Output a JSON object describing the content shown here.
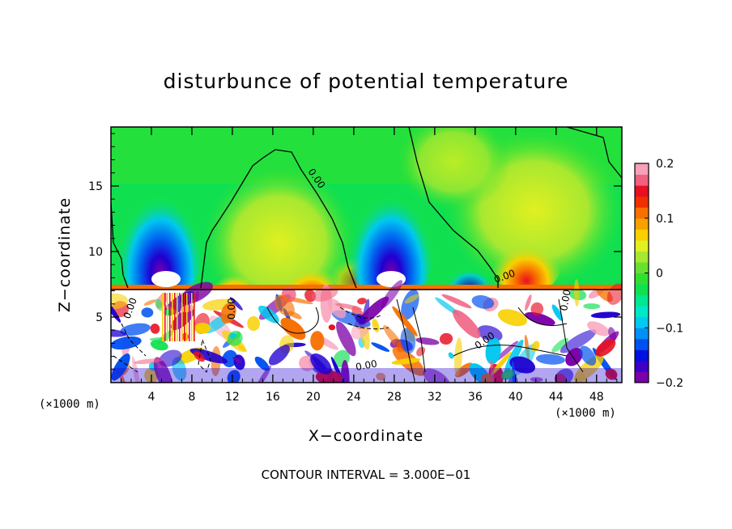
{
  "chart_data": {
    "type": "heatmap",
    "title": "disturbunce of potential temperature",
    "xlabel": "X−coordinate",
    "ylabel": "Z−coordinate",
    "x_unit_left": "(×1000 m)",
    "x_unit_right": "(×1000 m)",
    "x_ticks": [
      "4",
      "8",
      "12",
      "16",
      "20",
      "24",
      "28",
      "32",
      "36",
      "40",
      "44",
      "48"
    ],
    "x_tick_values": [
      4,
      8,
      12,
      16,
      20,
      24,
      28,
      32,
      36,
      40,
      44,
      48
    ],
    "y_ticks": [
      "5",
      "10",
      "15"
    ],
    "y_tick_values": [
      5,
      10,
      15
    ],
    "xlim": [
      0,
      50.5
    ],
    "ylim": [
      0,
      19.5
    ],
    "colorbar": {
      "ticks": [
        "0.2",
        "0.1",
        "0",
        "−0.1",
        "−0.2"
      ],
      "tick_values": [
        0.2,
        0.1,
        0,
        -0.1,
        -0.2
      ],
      "range": [
        -0.2,
        0.2
      ],
      "colors": [
        "#7b00a8",
        "#3c00c8",
        "#0010e0",
        "#0050f0",
        "#0090f8",
        "#00c8f0",
        "#00e8c8",
        "#00e890",
        "#10e050",
        "#30e030",
        "#68e030",
        "#a8e830",
        "#e0f020",
        "#f8d000",
        "#f8a000",
        "#f87000",
        "#f03000",
        "#e81020",
        "#f06080",
        "#f8a0b8"
      ]
    },
    "contour_label": "0.00",
    "annotation": "CONTOUR INTERVAL = 3.000E−01"
  }
}
